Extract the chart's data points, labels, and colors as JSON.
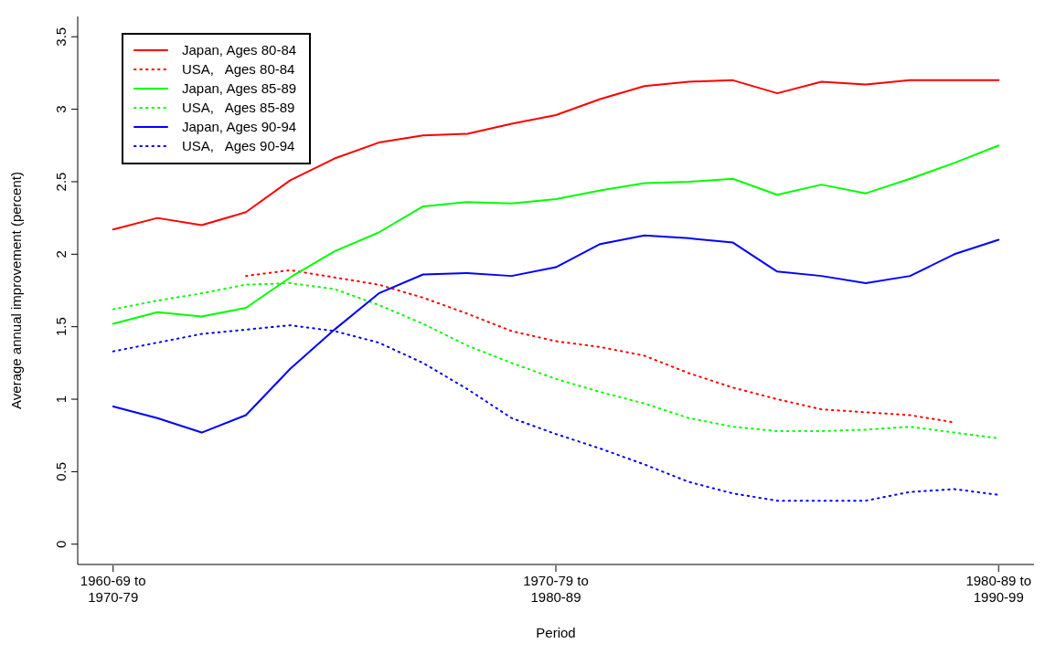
{
  "chart_data": {
    "type": "line",
    "xlabel": "Period",
    "ylabel": "Average annual improvement (percent)",
    "categories": [
      "1960-69 to\n1970-79",
      null,
      null,
      null,
      null,
      null,
      null,
      null,
      null,
      null,
      "1970-79 to\n1980-89",
      null,
      null,
      null,
      null,
      null,
      null,
      null,
      null,
      null,
      "1980-89 to\n1990-99"
    ],
    "ylim": [
      -0.14,
      3.64
    ],
    "yticks": [
      0,
      0.5,
      1,
      1.5,
      2,
      2.5,
      3,
      3.5
    ],
    "grid": false,
    "legend": "top left",
    "marker": "none",
    "series": [
      {
        "name": "Japan, Ages 80-84",
        "color": "#ff0000",
        "line_style": "solid",
        "values": [
          2.17,
          2.25,
          2.2,
          2.29,
          2.51,
          2.66,
          2.77,
          2.82,
          2.83,
          2.9,
          2.96,
          3.07,
          3.16,
          3.19,
          3.2,
          3.11,
          3.19,
          3.17,
          3.2,
          3.2,
          3.2
        ]
      },
      {
        "name": "USA,   Ages 80-84",
        "color": "#ff0000",
        "line_style": "dotted",
        "values": [
          null,
          null,
          null,
          1.85,
          1.89,
          1.84,
          1.79,
          1.7,
          1.59,
          1.47,
          1.4,
          1.36,
          1.3,
          1.18,
          1.08,
          1.0,
          0.93,
          0.91,
          0.89,
          0.84,
          null
        ]
      },
      {
        "name": "Japan, Ages 85-89",
        "color": "#00ff00",
        "line_style": "solid",
        "values": [
          1.52,
          1.6,
          1.57,
          1.63,
          1.84,
          2.02,
          2.15,
          2.33,
          2.36,
          2.35,
          2.38,
          2.44,
          2.49,
          2.5,
          2.52,
          2.41,
          2.48,
          2.42,
          2.52,
          2.63,
          2.75
        ]
      },
      {
        "name": "USA,   Ages 85-89",
        "color": "#00ff00",
        "line_style": "dotted",
        "values": [
          1.62,
          1.68,
          1.73,
          1.79,
          1.8,
          1.76,
          1.65,
          1.52,
          1.37,
          1.25,
          1.14,
          1.05,
          0.97,
          0.87,
          0.81,
          0.78,
          0.78,
          0.79,
          0.81,
          0.77,
          0.73
        ]
      },
      {
        "name": "Japan, Ages 90-94",
        "color": "#0000ff",
        "line_style": "solid",
        "values": [
          0.95,
          0.87,
          0.77,
          0.89,
          1.21,
          1.48,
          1.73,
          1.86,
          1.87,
          1.85,
          1.91,
          2.07,
          2.13,
          2.11,
          2.08,
          1.88,
          1.85,
          1.8,
          1.85,
          2.0,
          2.1
        ]
      },
      {
        "name": "USA,   Ages 90-94",
        "color": "#0000ff",
        "line_style": "dotted",
        "values": [
          1.33,
          1.39,
          1.45,
          1.48,
          1.51,
          1.47,
          1.39,
          1.25,
          1.07,
          0.87,
          0.76,
          0.66,
          0.55,
          0.43,
          0.35,
          0.3,
          0.3,
          0.3,
          0.36,
          0.38,
          0.34
        ]
      }
    ]
  }
}
